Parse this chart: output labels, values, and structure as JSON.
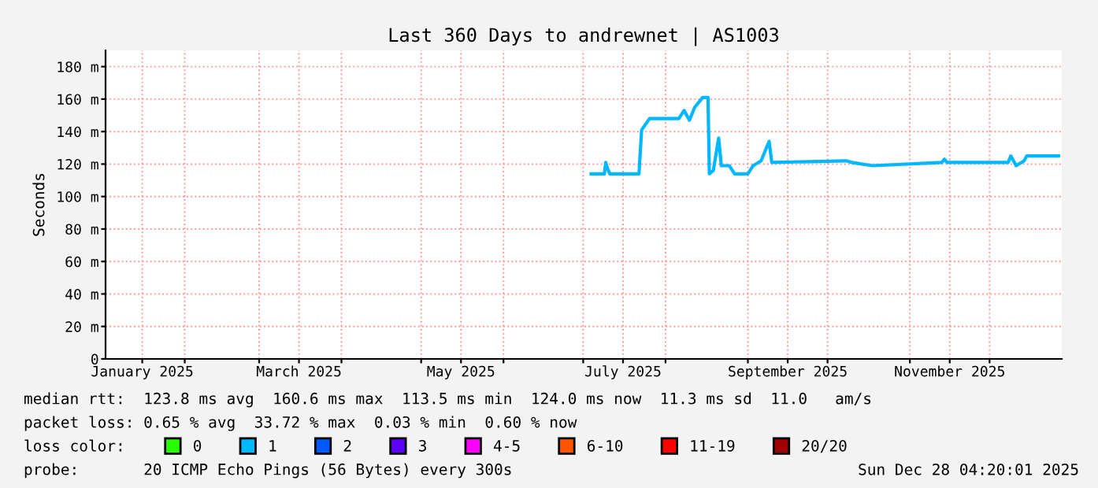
{
  "chart_data": {
    "type": "line",
    "title": "Last 360 Days to andrewnet | AS1003",
    "ylabel": "Seconds",
    "x": [
      "2025-07-04",
      "2025-07-09",
      "2025-07-09T12:00",
      "2025-07-10",
      "2025-07-11",
      "2025-07-22",
      "2025-07-23",
      "2025-07-26",
      "2025-08-06",
      "2025-08-08",
      "2025-08-10",
      "2025-08-12",
      "2025-08-15",
      "2025-08-17",
      "2025-08-17T12:00",
      "2025-08-19",
      "2025-08-21",
      "2025-08-22",
      "2025-08-25",
      "2025-08-27",
      "2025-09-01",
      "2025-09-03",
      "2025-09-06",
      "2025-09-09",
      "2025-09-10",
      "2025-10-08",
      "2025-10-10",
      "2025-10-18",
      "2025-11-13",
      "2025-11-14",
      "2025-11-15",
      "2025-12-08",
      "2025-12-09",
      "2025-12-11",
      "2025-12-14",
      "2025-12-15",
      "2025-12-27"
    ],
    "series": [
      {
        "name": "0",
        "color": "#26ff00",
        "values": [
          null,
          null,
          null,
          null,
          null,
          null,
          null,
          null,
          null,
          null,
          null,
          null,
          null,
          null,
          null,
          null,
          null,
          null,
          null,
          null,
          null,
          null,
          null,
          null,
          null,
          null,
          null,
          null,
          null,
          null,
          null,
          null,
          null,
          null,
          null,
          null,
          null
        ]
      },
      {
        "name": "1",
        "color": "#00b8ff",
        "values": [
          114,
          114,
          121,
          118,
          114,
          114,
          141,
          148,
          148,
          153,
          147,
          155,
          161,
          161,
          114,
          116,
          136,
          119,
          119,
          114,
          114,
          119,
          122,
          134,
          121,
          122,
          121,
          119,
          121,
          123,
          121,
          121,
          125,
          119,
          122,
          125,
          125
        ]
      },
      {
        "name": "2",
        "color": "#0059ff",
        "values": [
          null,
          null,
          null,
          null,
          null,
          null,
          null,
          null,
          null,
          null,
          null,
          null,
          null,
          null,
          null,
          null,
          null,
          null,
          null,
          null,
          null,
          null,
          null,
          null,
          null,
          null,
          null,
          null,
          null,
          null,
          null,
          null,
          null,
          null,
          null,
          null,
          null
        ]
      },
      {
        "name": "3",
        "color": "#5e00ff",
        "values": [
          null,
          null,
          null,
          null,
          null,
          null,
          null,
          null,
          null,
          null,
          null,
          null,
          null,
          null,
          null,
          null,
          null,
          null,
          null,
          null,
          null,
          null,
          null,
          null,
          null,
          null,
          null,
          null,
          null,
          null,
          null,
          null,
          null,
          null,
          null,
          null,
          null
        ]
      },
      {
        "name": "4-5",
        "color": "#ff00fe",
        "values": [
          null,
          null,
          null,
          null,
          null,
          null,
          null,
          null,
          null,
          null,
          null,
          null,
          null,
          null,
          null,
          null,
          null,
          null,
          null,
          null,
          null,
          null,
          null,
          null,
          null,
          null,
          null,
          null,
          null,
          null,
          null,
          null,
          null,
          null,
          null,
          null,
          null
        ]
      },
      {
        "name": "6-10",
        "color": "#ff5500",
        "values": [
          null,
          null,
          null,
          null,
          null,
          null,
          null,
          null,
          null,
          null,
          null,
          null,
          null,
          null,
          null,
          null,
          null,
          null,
          null,
          null,
          null,
          null,
          null,
          null,
          null,
          null,
          null,
          null,
          null,
          null,
          null,
          null,
          null,
          null,
          null,
          null,
          null
        ]
      },
      {
        "name": "11-19",
        "color": "#ff0000",
        "values": [
          null,
          null,
          null,
          null,
          null,
          null,
          null,
          null,
          null,
          null,
          null,
          null,
          null,
          null,
          null,
          null,
          null,
          null,
          null,
          null,
          null,
          null,
          null,
          null,
          null,
          null,
          null,
          null,
          null,
          null,
          null,
          null,
          null,
          null,
          null,
          null,
          null
        ]
      },
      {
        "name": "20/20",
        "color": "#a10000",
        "values": [
          null,
          null,
          null,
          null,
          null,
          null,
          null,
          null,
          null,
          null,
          null,
          null,
          null,
          null,
          null,
          null,
          null,
          null,
          null,
          null,
          null,
          null,
          null,
          null,
          null,
          null,
          null,
          null,
          null,
          null,
          null,
          null,
          null,
          null,
          null,
          null,
          null
        ]
      }
    ],
    "legend": "bottom",
    "legend_title": "loss color:",
    "xlim": [
      "2025-01-02T04:20",
      "2025-12-28T04:20"
    ],
    "xticks": [
      {
        "value": "2025-01-16",
        "label": "January 2025"
      },
      {
        "value": "2025-02-01",
        "label": null
      },
      {
        "value": "2025-03-01",
        "label": null
      },
      {
        "value": "2025-03-16",
        "label": "March 2025"
      },
      {
        "value": "2025-04-01",
        "label": null
      },
      {
        "value": "2025-05-01",
        "label": null
      },
      {
        "value": "2025-05-16",
        "label": "May 2025"
      },
      {
        "value": "2025-06-01",
        "label": null
      },
      {
        "value": "2025-07-01",
        "label": null
      },
      {
        "value": "2025-07-16",
        "label": "July 2025"
      },
      {
        "value": "2025-08-01",
        "label": null
      },
      {
        "value": "2025-09-01",
        "label": null
      },
      {
        "value": "2025-09-16",
        "label": "September 2025"
      },
      {
        "value": "2025-10-01",
        "label": null
      },
      {
        "value": "2025-11-01",
        "label": null
      },
      {
        "value": "2025-11-16",
        "label": "November 2025"
      },
      {
        "value": "2025-12-01",
        "label": null
      }
    ],
    "ylim": [
      0,
      190
    ],
    "yticks": [
      0,
      {
        "value": 20,
        "label": "20 m"
      },
      {
        "value": 40,
        "label": "40 m"
      },
      {
        "value": 60,
        "label": "60 m"
      },
      {
        "value": 80,
        "label": "80 m"
      },
      {
        "value": 100,
        "label": "100 m"
      },
      {
        "value": 120,
        "label": "120 m"
      },
      {
        "value": 140,
        "label": "140 m"
      },
      {
        "value": 160,
        "label": "160 m"
      },
      {
        "value": 180,
        "label": "180 m"
      }
    ],
    "grid": true,
    "annotations": [
      "median rtt:  123.8 ms avg  160.6 ms max  113.5 ms min  124.0 ms now  11.3 ms sd  11.0   am/s",
      "packet loss: 0.65 % avg  33.72 % max  0.03 % min  0.60 % now",
      "probe:       20 ICMP Echo Pings (56 Bytes) every 300s",
      "Sun Dec 28 04:20:01 2025"
    ]
  }
}
